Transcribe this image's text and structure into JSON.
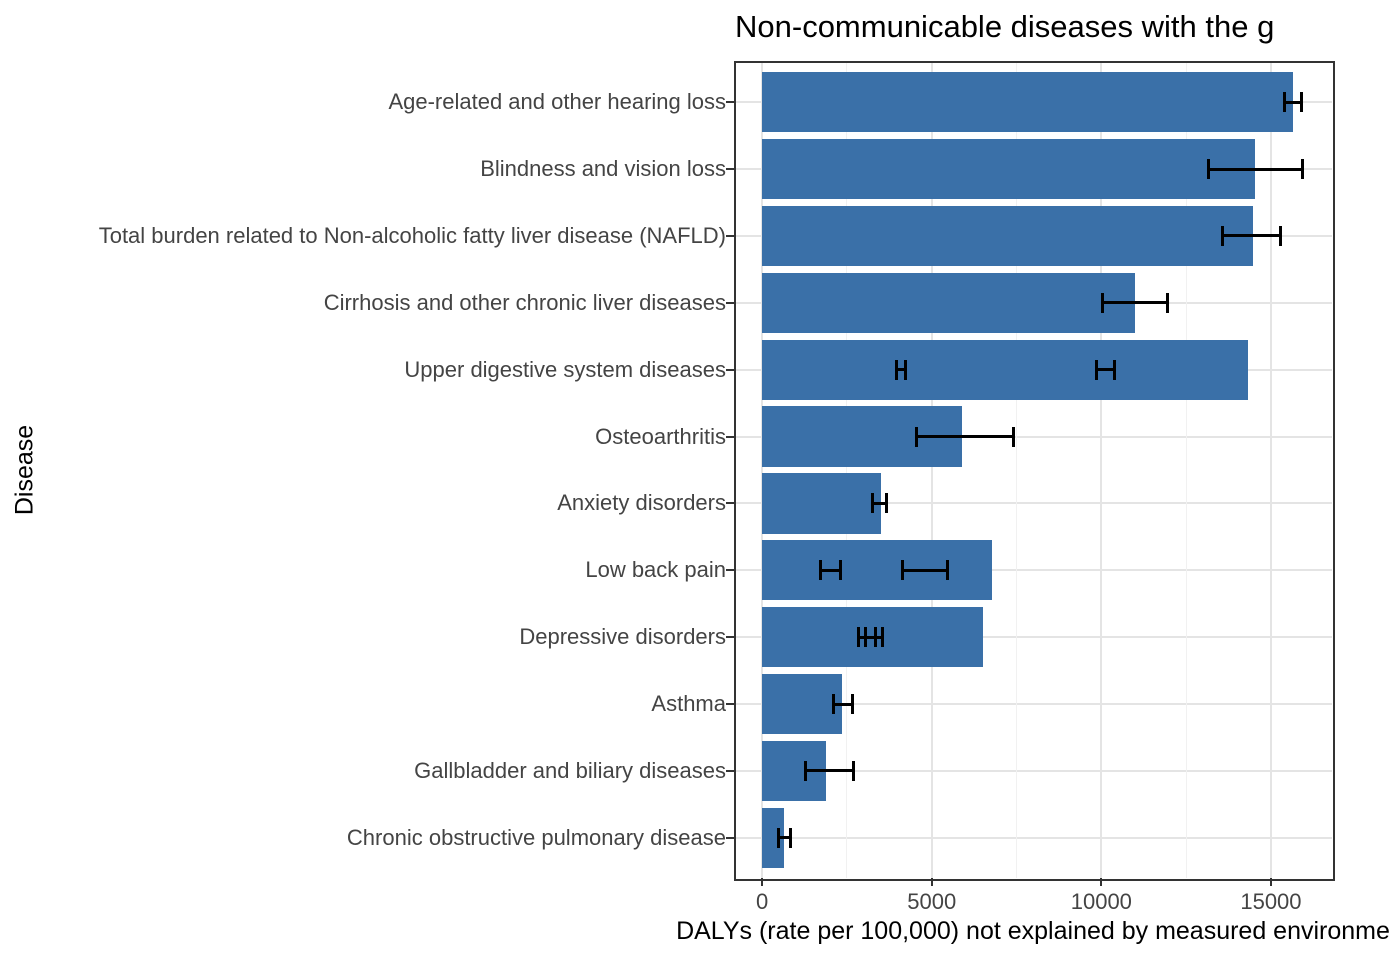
{
  "chart_data": {
    "type": "bar",
    "orientation": "horizontal",
    "title": "Non-communicable diseases with the g",
    "title_note": "truncated at right image edge",
    "xlabel": "DALYs (rate per 100,000) not explained by measured environme",
    "ylabel": "Disease",
    "xlim": [
      -800,
      16800
    ],
    "x_major_ticks": [
      0,
      5000,
      10000,
      15000
    ],
    "x_minor_gridlines": [
      2500,
      7500,
      12500
    ],
    "grid": "major-and-minor, light gray on white panel, black panel border",
    "legend": "none",
    "bar_color": "#3a70a8",
    "error_bar_color": "#000000",
    "categories": [
      "Age-related and other hearing loss",
      "Blindness and vision loss",
      "Total burden related to Non-alcoholic fatty liver disease (NAFLD)",
      "Cirrhosis and other chronic liver diseases",
      "Upper digestive system diseases",
      "Osteoarthritis",
      "Anxiety disorders",
      "Low back pain",
      "Depressive disorders",
      "Asthma",
      "Gallbladder and biliary diseases",
      "Chronic obstructive pulmonary disease"
    ],
    "values": [
      15650,
      14530,
      14470,
      10990,
      14320,
      5890,
      3510,
      6780,
      6510,
      2360,
      1890,
      650
    ],
    "error_bars": [
      [
        [
          15410,
          15910
        ]
      ],
      [
        [
          13170,
          15940
        ]
      ],
      [
        [
          13560,
          15270
        ]
      ],
      [
        [
          10020,
          11940
        ]
      ],
      [
        [
          3950,
          4240
        ],
        [
          9870,
          10400
        ]
      ],
      [
        [
          4540,
          7400
        ]
      ],
      [
        [
          3240,
          3680
        ]
      ],
      [
        [
          1710,
          2300
        ],
        [
          4130,
          5450
        ]
      ],
      [
        [
          2830,
          3330
        ],
        [
          3040,
          3540
        ]
      ],
      [
        [
          2090,
          2650
        ]
      ],
      [
        [
          1270,
          2680
        ]
      ],
      [
        [
          470,
          830
        ]
      ]
    ]
  }
}
